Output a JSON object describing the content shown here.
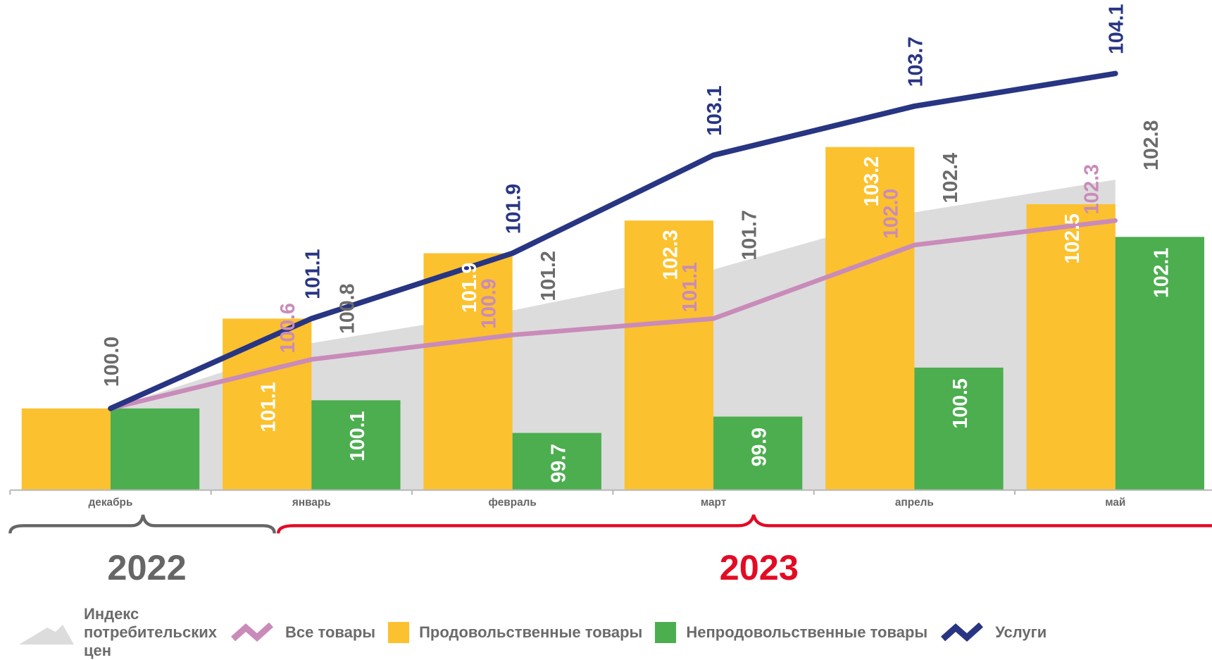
{
  "chart_data": {
    "type": "bar",
    "categories": [
      "декабрь",
      "январь",
      "февраль",
      "март",
      "апрель",
      "май"
    ],
    "ylim": [
      99,
      105
    ],
    "series": [
      {
        "name": "Индекс потребительских цен",
        "type": "area",
        "color": "#dcdcdc",
        "label_color": "#6b6b6b",
        "values": [
          100.0,
          100.8,
          101.2,
          101.7,
          102.4,
          102.8
        ],
        "value_labels": [
          "100.0",
          "100.8",
          "101.2",
          "101.7",
          "102.4",
          "102.8"
        ]
      },
      {
        "name": "Все товары",
        "type": "line",
        "color": "#c98bb9",
        "label_color": "#c98bb9",
        "values": [
          100.0,
          100.6,
          100.9,
          101.1,
          102.0,
          102.3
        ],
        "value_labels": [
          null,
          "100.6",
          "100.9",
          "101.1",
          "102.0",
          "102.3"
        ]
      },
      {
        "name": "Продовольственные товары",
        "type": "bar",
        "color": "#fcc12e",
        "label_color": "#ffffff",
        "values": [
          100.0,
          101.1,
          101.9,
          102.3,
          103.2,
          102.5
        ],
        "value_labels": [
          null,
          "101.1",
          "101.9",
          "102.3",
          "103.2",
          "102.5"
        ]
      },
      {
        "name": "Непродовольственные товары",
        "type": "bar",
        "color": "#4cae4f",
        "label_color": "#ffffff",
        "values": [
          100.0,
          100.1,
          99.7,
          99.9,
          100.5,
          102.1
        ],
        "value_labels": [
          null,
          "100.1",
          "99.7",
          "99.9",
          "100.5",
          "102.1"
        ]
      },
      {
        "name": "Услуги",
        "type": "line",
        "color": "#283583",
        "label_color": "#283583",
        "values": [
          100.0,
          101.1,
          101.9,
          103.1,
          103.7,
          104.1
        ],
        "value_labels": [
          null,
          "101.1",
          "101.9",
          "103.1",
          "103.7",
          "104.1"
        ]
      }
    ],
    "annotations": [
      "2022",
      "2023"
    ]
  }
}
